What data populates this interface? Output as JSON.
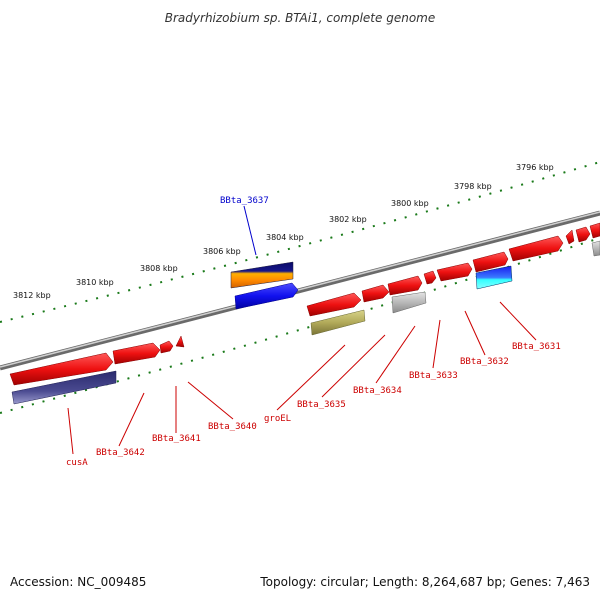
{
  "title": "Bradyrhizobium sp. BTAi1, complete genome",
  "footer": {
    "accession": "Accession: NC_009485",
    "topology": "Topology: circular; Length: 8,264,687 bp; Genes: 7,463"
  },
  "colors": {
    "backbone": "#888888",
    "tick": "#1a7a1a",
    "gene_red": "#ee1111",
    "label_red": "#cc0000",
    "label_blue": "#0000cc"
  },
  "ruler_labels": [
    "3796 kbp",
    "3798 kbp",
    "3800 kbp",
    "3802 kbp",
    "3804 kbp",
    "3806 kbp",
    "3808 kbp",
    "3810 kbp",
    "3812 kbp"
  ],
  "gene_labels": [
    {
      "id": "BBta_3637",
      "color": "blue"
    },
    {
      "id": "BBta_3631",
      "color": "red"
    },
    {
      "id": "BBta_3632",
      "color": "red"
    },
    {
      "id": "BBta_3633",
      "color": "red"
    },
    {
      "id": "BBta_3634",
      "color": "red"
    },
    {
      "id": "BBta_3635",
      "color": "red"
    },
    {
      "id": "groEL",
      "color": "red"
    },
    {
      "id": "BBta_3640",
      "color": "red"
    },
    {
      "id": "BBta_3641",
      "color": "red"
    },
    {
      "id": "BBta_3642",
      "color": "red"
    },
    {
      "id": "cusA",
      "color": "red"
    }
  ]
}
